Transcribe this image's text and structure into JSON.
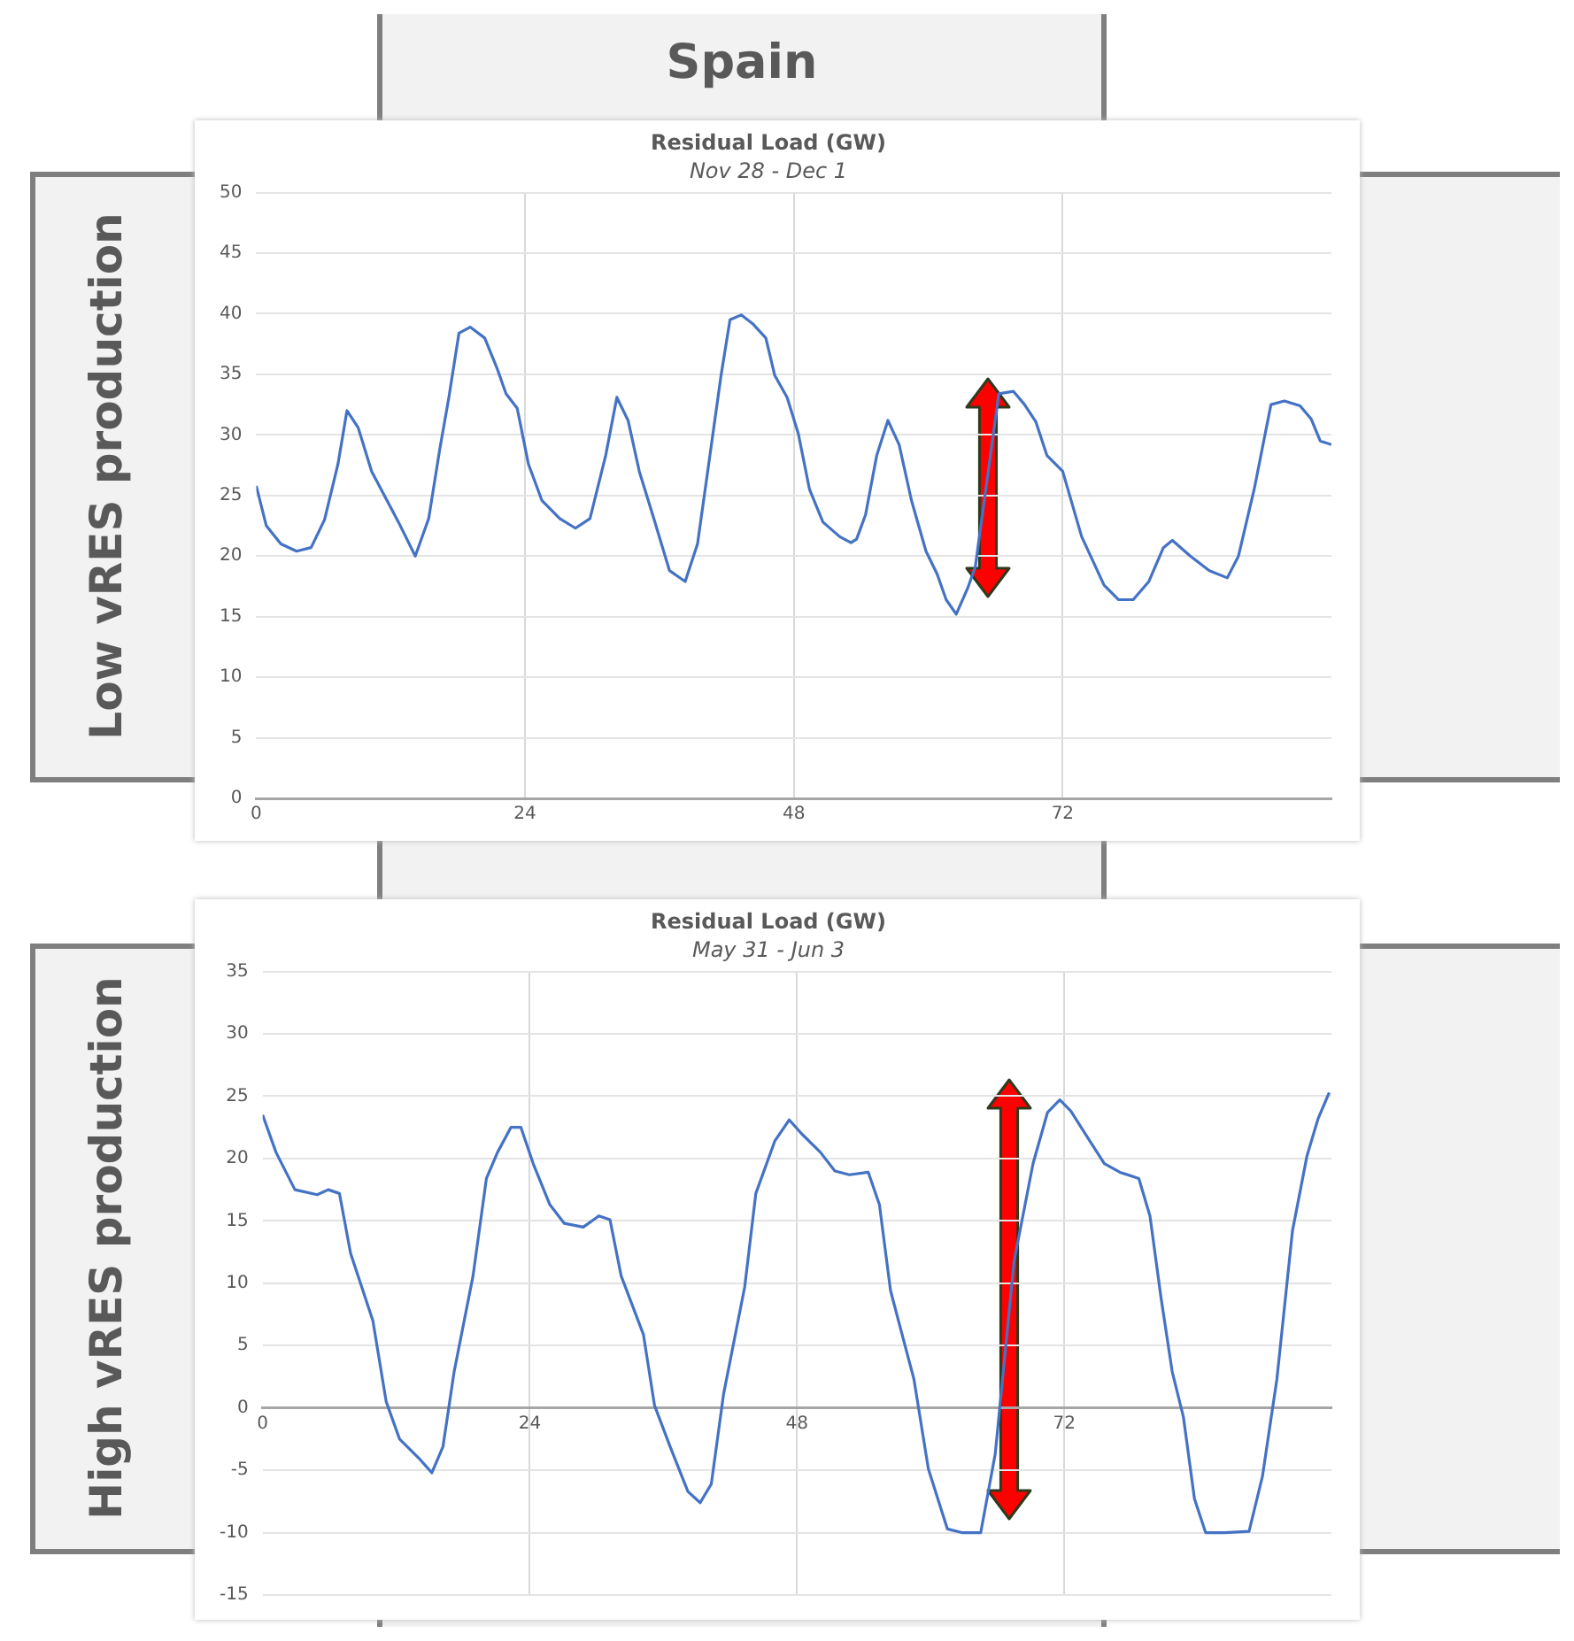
{
  "chart_data": [
    {
      "type": "line",
      "title": "Residual Load (GW)",
      "subtitle": "Nov 28 - Dec 1",
      "annotations": [
        "Spain",
        "Low vRES production"
      ],
      "x": [
        0,
        0.9,
        2.2,
        3.6,
        4.9,
        6.1,
        7.3,
        8.1,
        9.1,
        10.3,
        12.7,
        14.2,
        15.4,
        16.4,
        17.2,
        18.1,
        19.1,
        20.4,
        21.5,
        22.3,
        23.3,
        24.3,
        25.5,
        27.1,
        28.5,
        29.8,
        31.2,
        32.2,
        33.2,
        34.2,
        35.4,
        36.9,
        38.3,
        39.4,
        40.4,
        41.5,
        42.3,
        43.3,
        44.3,
        45.5,
        46.3,
        47.4,
        48.4,
        49.4,
        50.6,
        52.1,
        53.1,
        53.6,
        54.4,
        55.4,
        56.4,
        57.4,
        58.5,
        59.8,
        60.8,
        61.6,
        62.5,
        63.5,
        64.2,
        66.3,
        67.6,
        68.6,
        69.6,
        70.6,
        72,
        73.7,
        75.7,
        77,
        78.3,
        79.7,
        81,
        81.8,
        83.4,
        85.1,
        86.7,
        87.7,
        89.1,
        90.6,
        91.8,
        93.2,
        94.2,
        95,
        96
      ],
      "series": [
        {
          "color": "#4472c4",
          "values": [
            25.8,
            22.5,
            21,
            20.4,
            20.7,
            23,
            27.6,
            32,
            30.6,
            27,
            22.8,
            20,
            23.1,
            28.9,
            33.1,
            38.4,
            38.9,
            38,
            35.5,
            33.4,
            32.2,
            27.6,
            24.6,
            23.1,
            22.3,
            23.1,
            28.3,
            33.1,
            31.2,
            27,
            23.4,
            18.8,
            17.9,
            21,
            27.6,
            34.9,
            39.5,
            39.9,
            39.2,
            38,
            34.9,
            33.1,
            30.1,
            25.5,
            22.8,
            21.6,
            21.1,
            21.4,
            23.4,
            28.3,
            31.2,
            29.2,
            24.6,
            20.4,
            18.5,
            16.4,
            15.2,
            17.3,
            19.1,
            33.4,
            33.6,
            32.5,
            31.1,
            28.3,
            27,
            21.6,
            17.6,
            16.4,
            16.4,
            17.9,
            20.7,
            21.3,
            20,
            18.8,
            18.2,
            20,
            25.5,
            32.5,
            32.8,
            32.4,
            31.3,
            29.5,
            29.2
          ]
        }
      ],
      "xlim": [
        0,
        96
      ],
      "xticks": [
        0,
        24,
        48,
        72
      ],
      "ylim": [
        0,
        50
      ],
      "yticks": [
        0,
        5,
        10,
        15,
        20,
        25,
        30,
        35,
        40,
        45,
        50
      ],
      "grid": true,
      "marker": "none"
    },
    {
      "type": "line",
      "title": "Residual Load (GW)",
      "subtitle": "May 31 - Jun 3",
      "annotations": [
        "High vRES production"
      ],
      "x": [
        0,
        1.2,
        2.9,
        4.9,
        5.9,
        6.9,
        7.9,
        9.9,
        11.1,
        12.3,
        14,
        15.2,
        16.2,
        17.2,
        18.9,
        20.1,
        21.1,
        22.3,
        23.2,
        24.3,
        25.8,
        27.1,
        28.8,
        30.2,
        31.2,
        32.2,
        34.2,
        35.2,
        36.6,
        38.2,
        39.3,
        40.3,
        41.4,
        43.3,
        44.3,
        46,
        47.3,
        48.4,
        50.1,
        51.4,
        52.7,
        54.4,
        55.4,
        56.4,
        58.5,
        59.8,
        61.5,
        62.8,
        64.5,
        65.8,
        67.5,
        69.2,
        70.5,
        71.6,
        72.6,
        74.3,
        75.6,
        77,
        78.7,
        79.7,
        80.7,
        81.7,
        82.7,
        83.7,
        84.7,
        86.4,
        88.6,
        89.8,
        91.1,
        92.5,
        93.8,
        94.8,
        95.8
      ],
      "series": [
        {
          "color": "#4472c4",
          "values": [
            23.5,
            20.5,
            17.5,
            17.1,
            17.5,
            17.2,
            12.4,
            7,
            0.5,
            -2.5,
            -4,
            -5.2,
            -3.1,
            2.9,
            10.6,
            18.4,
            20.5,
            22.5,
            22.5,
            19.6,
            16.3,
            14.8,
            14.5,
            15.4,
            15.1,
            10.6,
            5.9,
            0.2,
            -3.1,
            -6.7,
            -7.6,
            -6.1,
            1.1,
            9.7,
            17.2,
            21.4,
            23.1,
            22,
            20.5,
            19,
            18.7,
            18.9,
            16.3,
            9.4,
            2.3,
            -4.9,
            -9.7,
            -10,
            -10,
            -3.7,
            11.8,
            19.6,
            23.7,
            24.7,
            23.8,
            21.4,
            19.6,
            18.9,
            18.4,
            15.4,
            8.8,
            2.9,
            -0.7,
            -7.3,
            -10,
            -10,
            -9.9,
            -5.5,
            2.3,
            14.2,
            20.2,
            23.2,
            25.3
          ]
        }
      ],
      "xlim": [
        0,
        96
      ],
      "xticks": [
        0,
        24,
        48,
        72
      ],
      "ylim": [
        -15,
        35
      ],
      "yticks": [
        -15,
        -10,
        -5,
        0,
        5,
        10,
        15,
        20,
        25,
        30,
        35
      ],
      "grid": true,
      "marker": "none"
    }
  ]
}
